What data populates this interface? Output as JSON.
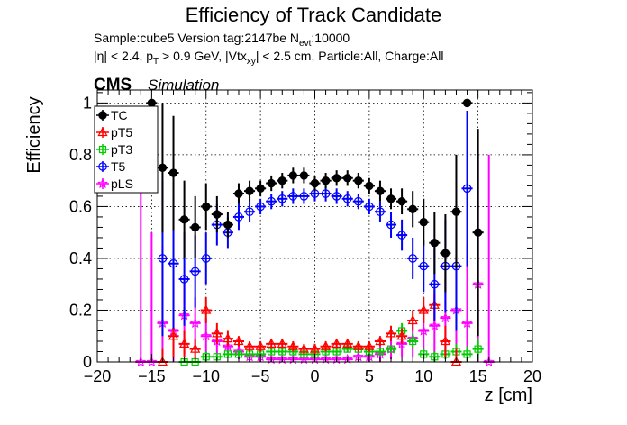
{
  "chart_data": {
    "type": "scatter",
    "title": "Efficiency of Track Candidate",
    "info": {
      "sample": "Sample:cube5   Version tag:2147be  N",
      "nevt_sub": "evt",
      "nevt_val": ":10000",
      "cuts_a": "|η| < 2.4, p",
      "cuts_a_sub": "T",
      "cuts_b": " > 0.9 GeV, |Vtx",
      "cuts_b_sub": "xy",
      "cuts_c": "| < 2.5 cm, Particle:All, Charge:All"
    },
    "cms_label": "CMS",
    "sim_label": "Simulation",
    "xlabel": "z [cm]",
    "ylabel": "Efficiency",
    "xlim": [
      -20,
      20
    ],
    "ylim": [
      0,
      1.05
    ],
    "xticks": [
      -20,
      -15,
      -10,
      -5,
      0,
      5,
      10,
      15,
      20
    ],
    "yticks": [
      0,
      0.2,
      0.4,
      0.6,
      0.8,
      1
    ],
    "ytick_labels": [
      "0",
      "0.2",
      "0.4",
      "0.6",
      "0.8",
      "1"
    ],
    "grid": true,
    "legend_position": "top-left",
    "series": [
      {
        "name": "TC",
        "color": "#000000",
        "marker": "filled-circle",
        "x": [
          -15,
          -14,
          -13,
          -12,
          -11,
          -10,
          -9,
          -8,
          -7,
          -6,
          -5,
          -4,
          -3,
          -2,
          -1,
          0,
          1,
          2,
          3,
          4,
          5,
          6,
          7,
          8,
          9,
          10,
          11,
          12,
          13,
          14,
          15
        ],
        "y": [
          1.0,
          0.75,
          0.73,
          0.55,
          0.52,
          0.6,
          0.57,
          0.53,
          0.65,
          0.66,
          0.67,
          0.69,
          0.7,
          0.72,
          0.72,
          0.69,
          0.7,
          0.71,
          0.71,
          0.7,
          0.68,
          0.66,
          0.63,
          0.62,
          0.59,
          0.54,
          0.46,
          0.42,
          0.58,
          1.0,
          0.5
        ],
        "err": [
          0.0,
          0.25,
          0.22,
          0.15,
          0.12,
          0.09,
          0.07,
          0.05,
          0.04,
          0.04,
          0.03,
          0.03,
          0.03,
          0.03,
          0.03,
          0.03,
          0.03,
          0.03,
          0.03,
          0.03,
          0.03,
          0.04,
          0.04,
          0.05,
          0.07,
          0.09,
          0.12,
          0.15,
          0.22,
          0.0,
          0.4
        ]
      },
      {
        "name": "pT5",
        "color": "#ff0000",
        "marker": "open-triangle",
        "x": [
          -14,
          -13,
          -12,
          -11,
          -10,
          -9,
          -8,
          -7,
          -6,
          -5,
          -4,
          -3,
          -2,
          -1,
          0,
          1,
          2,
          3,
          4,
          5,
          6,
          7,
          8,
          9,
          10,
          11,
          12,
          13
        ],
        "y": [
          0.0,
          0.1,
          0.07,
          0.05,
          0.2,
          0.11,
          0.09,
          0.08,
          0.06,
          0.06,
          0.07,
          0.07,
          0.06,
          0.05,
          0.05,
          0.06,
          0.07,
          0.07,
          0.06,
          0.06,
          0.08,
          0.11,
          0.1,
          0.16,
          0.2,
          0.22,
          0.08,
          0.0
        ],
        "err": [
          0.05,
          0.08,
          0.05,
          0.04,
          0.05,
          0.04,
          0.03,
          0.02,
          0.02,
          0.02,
          0.02,
          0.02,
          0.02,
          0.02,
          0.02,
          0.02,
          0.02,
          0.02,
          0.02,
          0.02,
          0.02,
          0.03,
          0.03,
          0.04,
          0.05,
          0.06,
          0.06,
          0.05
        ]
      },
      {
        "name": "pT3",
        "color": "#00cc00",
        "marker": "open-square",
        "x": [
          -12,
          -11,
          -10,
          -9,
          -8,
          -7,
          -6,
          -5,
          -4,
          -3,
          -2,
          -1,
          0,
          1,
          2,
          3,
          4,
          5,
          6,
          7,
          8,
          9,
          10,
          11,
          12,
          13,
          14,
          15
        ],
        "y": [
          0.0,
          0.0,
          0.02,
          0.02,
          0.03,
          0.03,
          0.03,
          0.03,
          0.04,
          0.04,
          0.04,
          0.03,
          0.03,
          0.04,
          0.04,
          0.05,
          0.05,
          0.04,
          0.04,
          0.05,
          0.12,
          0.08,
          0.03,
          0.02,
          0.03,
          0.04,
          0.03,
          0.05
        ],
        "err": [
          0.01,
          0.01,
          0.02,
          0.01,
          0.01,
          0.01,
          0.01,
          0.01,
          0.01,
          0.01,
          0.01,
          0.01,
          0.01,
          0.01,
          0.01,
          0.01,
          0.01,
          0.01,
          0.01,
          0.01,
          0.03,
          0.03,
          0.02,
          0.02,
          0.02,
          0.03,
          0.03,
          0.04
        ]
      },
      {
        "name": "T5",
        "color": "#0000ff",
        "marker": "open-circle",
        "x": [
          -14,
          -13,
          -12,
          -11,
          -10,
          -9,
          -8,
          -7,
          -6,
          -5,
          -4,
          -3,
          -2,
          -1,
          0,
          1,
          2,
          3,
          4,
          5,
          6,
          7,
          8,
          9,
          10,
          11,
          12,
          13,
          14
        ],
        "y": [
          0.4,
          0.38,
          0.32,
          0.35,
          0.4,
          0.53,
          0.5,
          0.56,
          0.58,
          0.6,
          0.62,
          0.63,
          0.64,
          0.64,
          0.65,
          0.65,
          0.64,
          0.63,
          0.62,
          0.6,
          0.58,
          0.53,
          0.49,
          0.4,
          0.37,
          0.3,
          0.37,
          0.37,
          0.67
        ],
        "err": [
          0.3,
          0.25,
          0.18,
          0.14,
          0.1,
          0.08,
          0.06,
          0.05,
          0.04,
          0.03,
          0.03,
          0.03,
          0.03,
          0.03,
          0.03,
          0.03,
          0.03,
          0.03,
          0.03,
          0.03,
          0.04,
          0.05,
          0.06,
          0.08,
          0.1,
          0.14,
          0.18,
          0.25,
          0.3
        ]
      },
      {
        "name": "pLS",
        "color": "#ff00ff",
        "marker": "open-star",
        "x": [
          -16,
          -15,
          -14,
          -13,
          -12,
          -11,
          -10,
          -9,
          -8,
          -7,
          -6,
          -5,
          -4,
          -3,
          -2,
          -1,
          0,
          1,
          2,
          3,
          4,
          5,
          6,
          7,
          8,
          9,
          10,
          11,
          12,
          13,
          14,
          15,
          16
        ],
        "y": [
          0.0,
          0.0,
          0.15,
          0.12,
          0.18,
          0.15,
          0.1,
          0.08,
          0.06,
          0.04,
          0.02,
          0.02,
          0.01,
          0.01,
          0.01,
          0.01,
          0.01,
          0.01,
          0.01,
          0.01,
          0.02,
          0.02,
          0.03,
          0.05,
          0.07,
          0.09,
          0.12,
          0.14,
          0.17,
          0.2,
          0.15,
          0.3,
          0.0
        ],
        "err": [
          0.8,
          0.5,
          0.3,
          0.22,
          0.15,
          0.1,
          0.07,
          0.05,
          0.04,
          0.03,
          0.02,
          0.02,
          0.01,
          0.01,
          0.01,
          0.01,
          0.01,
          0.01,
          0.01,
          0.01,
          0.02,
          0.02,
          0.03,
          0.04,
          0.05,
          0.07,
          0.1,
          0.12,
          0.15,
          0.22,
          0.3,
          0.5,
          0.8
        ]
      }
    ]
  }
}
